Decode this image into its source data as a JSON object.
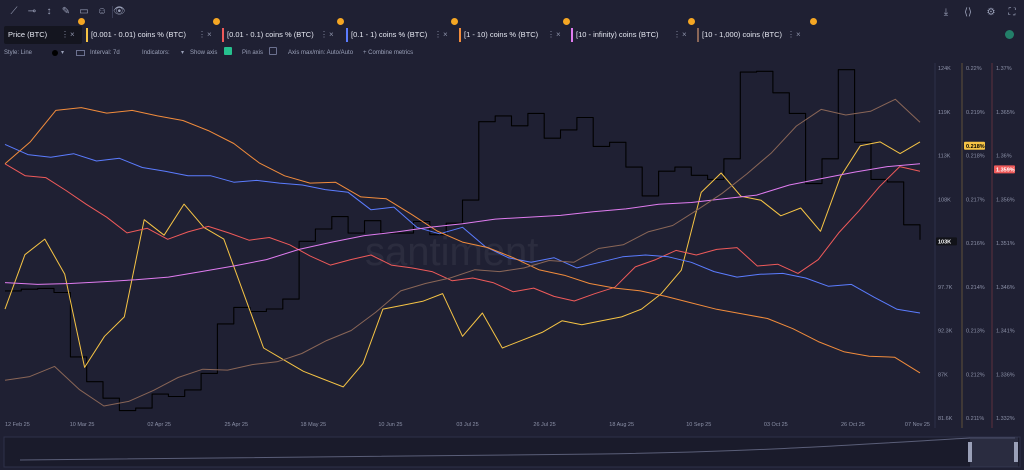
{
  "toolbar": {
    "icons": [
      "trend-line-icon",
      "horizontal-line-icon",
      "vertical-line-icon",
      "brush-icon",
      "note-icon",
      "emoji-icon",
      "eye-icon"
    ],
    "right_icons": [
      "download-icon",
      "code-icon",
      "gear-icon",
      "fullscreen-icon"
    ]
  },
  "tabs": [
    {
      "label": "Price (BTC)",
      "color": "#000000"
    },
    {
      "label": "[0.001 - 0.01) coins % (BTC)",
      "color": "#f6c445"
    },
    {
      "label": "[0.01 - 0.1) coins % (BTC)",
      "color": "#ef5a5a"
    },
    {
      "label": "[0.1 - 1) coins % (BTC)",
      "color": "#5b7cff"
    },
    {
      "label": "[1 - 10) coins % (BTC)",
      "color": "#f28c3c"
    },
    {
      "label": "[10 - infinity) coins (BTC)",
      "color": "#e07cf0"
    },
    {
      "label": "[10 - 1,000) coins (BTC)",
      "color": "#8a6657"
    }
  ],
  "settings": {
    "style": "Style: Line",
    "interval": "Interval: 7d",
    "indicators": "Indicators:",
    "show_axis": "Show axis",
    "pin_axis": "Pin axis",
    "axis_minmax": "Axis max/min: Auto/Auto",
    "combine": "+ Combine metrics"
  },
  "watermark": "santiment",
  "chart_data": {
    "type": "line",
    "x_ticks": [
      "12 Feb 25",
      "10 Mar 25",
      "02 Apr 25",
      "25 Apr 25",
      "18 May 25",
      "10 Jun 25",
      "03 Jul 25",
      "26 Jul 25",
      "18 Aug 25",
      "10 Sep 25",
      "03 Oct 25",
      "26 Oct 25",
      "07 Nov 25"
    ],
    "axes": [
      {
        "name": "price",
        "ticks": [
          "124K",
          "119K",
          "113K",
          "108K",
          "103K",
          "97.7K",
          "92.3K",
          "87K",
          "81.6K"
        ],
        "ylim": [
          81.6,
          124
        ],
        "current_label": "103K"
      },
      {
        "name": "pct_small",
        "ticks": [
          "0.22%",
          "0.219%",
          "0.218%",
          "0.217%",
          "0.216%",
          "0.214%",
          "0.213%",
          "0.212%",
          "0.211%"
        ],
        "ylim": [
          0.211,
          0.22
        ],
        "current_label": "0.218%",
        "color": "#f6c445"
      },
      {
        "name": "pct_mid",
        "ticks": [
          "1.37%",
          "1.365%",
          "1.36%",
          "1.356%",
          "1.351%",
          "1.346%",
          "1.341%",
          "1.336%",
          "1.332%"
        ],
        "ylim": [
          1.332,
          1.37
        ],
        "current_label": "1.359%",
        "color": "#ef5a5a"
      }
    ],
    "series": [
      {
        "name": "Price (BTC)",
        "color": "#000000",
        "axis": "price",
        "values": [
          97,
          97.2,
          97.3,
          96.8,
          89,
          86,
          84,
          82.5,
          82.8,
          84.5,
          84.2,
          85,
          87,
          93,
          95,
          94.5,
          94.8,
          96,
          103,
          104.5,
          106,
          104,
          105.5,
          104,
          104,
          105.4,
          103.8,
          105.2,
          108,
          117.5,
          118.2,
          117,
          118.5,
          115.5,
          116.5,
          118,
          114.5,
          115,
          112,
          108.5,
          111.5,
          112,
          111,
          110.5,
          113,
          123.5,
          123.6,
          121,
          118.5,
          110,
          113,
          123.8,
          115,
          110.5,
          110.2,
          105,
          103.2
        ]
      },
      {
        "name": "[0.001 - 0.01) coins % (BTC)",
        "color": "#f6c445",
        "axis": "pct_small",
        "values": [
          0.2138,
          0.2152,
          0.2156,
          0.2147,
          0.2123,
          0.2131,
          0.2136,
          0.2161,
          0.2157,
          0.2165,
          0.2159,
          0.2156,
          0.2142,
          0.2128,
          0.2125,
          0.2122,
          0.212,
          0.2118,
          0.2124,
          0.2138,
          0.2139,
          0.214,
          0.2142,
          0.2131,
          0.2137,
          0.2128,
          0.213,
          0.2132,
          0.2135,
          0.2134,
          0.2135,
          0.2136,
          0.2138,
          0.2142,
          0.2148,
          0.2168,
          0.2173,
          0.2167,
          0.2166,
          0.2162,
          0.2164,
          0.2158,
          0.2172,
          0.218,
          0.2181,
          0.2178,
          0.2181
        ]
      },
      {
        "name": "[0.01 - 0.1) coins % (BTC)",
        "color": "#ef5a5a",
        "axis": "pct_mid",
        "values": [
          1.3596,
          1.3583,
          1.3581,
          1.3567,
          1.3552,
          1.3538,
          1.3521,
          1.3526,
          1.3514,
          1.3522,
          1.3528,
          1.3521,
          1.3513,
          1.3516,
          1.3508,
          1.3496,
          1.3486,
          1.3492,
          1.3497,
          1.3486,
          1.3483,
          1.3479,
          1.3469,
          1.3472,
          1.3467,
          1.3457,
          1.3461,
          1.3452,
          1.3447,
          1.3455,
          1.3462,
          1.3484,
          1.3492,
          1.3502,
          1.3497,
          1.3503,
          1.3505,
          1.3485,
          1.3487,
          1.3477,
          1.3492,
          1.3521,
          1.3545,
          1.3571,
          1.3593,
          1.3588
        ]
      },
      {
        "name": "[0.1 - 1) coins % (BTC)",
        "color": "#5b7cff",
        "axis": "pct_mid",
        "values": [
          1.3617,
          1.3606,
          1.3603,
          1.3607,
          1.3599,
          1.3602,
          1.3592,
          1.3588,
          1.3583,
          1.3583,
          1.3576,
          1.3578,
          1.3575,
          1.3573,
          1.3568,
          1.3565,
          1.3546,
          1.3549,
          1.3527,
          1.352,
          1.3527,
          1.3506,
          1.3494,
          1.3489,
          1.3494,
          1.3483,
          1.3489,
          1.3495,
          1.3497,
          1.3495,
          1.3489,
          1.3479,
          1.3473,
          1.3476,
          1.3477,
          1.3472,
          1.3463,
          1.3465,
          1.3451,
          1.3438,
          1.3434
        ]
      },
      {
        "name": "[1 - 10) coins % (BTC)",
        "color": "#f28c3c",
        "axis": "pct_mid",
        "values": [
          1.3596,
          1.362,
          1.3654,
          1.3657,
          1.3651,
          1.3654,
          1.3648,
          1.3643,
          1.3632,
          1.3618,
          1.3597,
          1.3583,
          1.3575,
          1.3576,
          1.356,
          1.3558,
          1.3541,
          1.3523,
          1.3511,
          1.3505,
          1.3494,
          1.3481,
          1.3475,
          1.3466,
          1.3461,
          1.3458,
          1.3452,
          1.3445,
          1.3438,
          1.3433,
          1.3428,
          1.3417,
          1.3403,
          1.3392,
          1.3387,
          1.3386,
          1.3369
        ]
      },
      {
        "name": "[10 - infinity) coins (BTC)",
        "color": "#e07cf0",
        "axis": "pct_mid",
        "values": [
          1.3467,
          1.3465,
          1.3466,
          1.3468,
          1.347,
          1.3473,
          1.3479,
          1.3485,
          1.3492,
          1.3503,
          1.3511,
          1.3518,
          1.3522,
          1.3527,
          1.3531,
          1.3536,
          1.3538,
          1.354,
          1.3544,
          1.3547,
          1.3552,
          1.3554,
          1.3558,
          1.3562,
          1.3573,
          1.358,
          1.3587,
          1.3593,
          1.3596
        ]
      },
      {
        "name": "[10 - 1,000) coins (BTC)",
        "color": "#8a6657",
        "axis": "pct_mid",
        "values": [
          1.3361,
          1.3365,
          1.3376,
          1.3351,
          1.3333,
          1.3338,
          1.335,
          1.3364,
          1.3373,
          1.3372,
          1.3378,
          1.3381,
          1.339,
          1.3404,
          1.3415,
          1.3435,
          1.3458,
          1.3466,
          1.3472,
          1.3481,
          1.3479,
          1.3483,
          1.3491,
          1.3489,
          1.3504,
          1.3508,
          1.3522,
          1.3529,
          1.3546,
          1.3564,
          1.3585,
          1.3608,
          1.3637,
          1.3655,
          1.3649,
          1.3653,
          1.3666,
          1.3641
        ]
      }
    ]
  }
}
